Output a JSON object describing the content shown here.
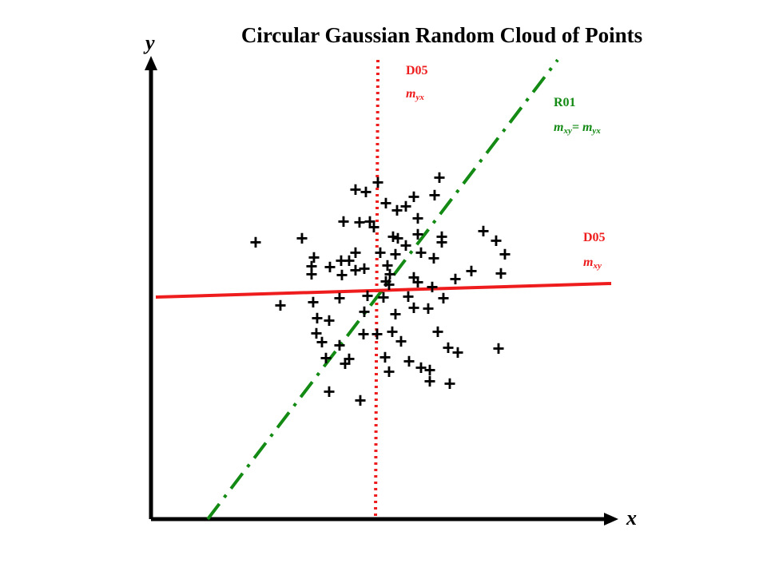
{
  "chart_data": {
    "type": "scatter",
    "title": "Circular Gaussian Random Cloud of Points",
    "xlabel": "x",
    "ylabel": "y",
    "marker": "+",
    "grid": false,
    "colors": {
      "d05": "#ee1c1c",
      "r01": "#138a13",
      "points": "#000000",
      "axes": "#000000"
    },
    "lines": [
      {
        "name": "D05",
        "label_main": "D05",
        "label_sub": "m yx",
        "style": "dotted",
        "color": "#ee1c1c",
        "p1": [
          473,
          75
        ],
        "p2": [
          470,
          650
        ]
      },
      {
        "name": "R01",
        "label_main": "R01",
        "label_sub": "m xy= m yx",
        "style": "dash-dot",
        "color": "#138a13",
        "p1": [
          260,
          650
        ],
        "p2": [
          698,
          75
        ]
      },
      {
        "name": "D05",
        "label_main": "D05",
        "label_sub": "m xy",
        "style": "solid",
        "color": "#ee1c1c",
        "p1": [
          195,
          372
        ],
        "p2": [
          765,
          355
        ]
      }
    ],
    "points": [
      [
        445,
        237
      ],
      [
        458,
        240
      ],
      [
        473,
        228
      ],
      [
        550,
        222
      ],
      [
        518,
        246
      ],
      [
        544,
        244
      ],
      [
        483,
        254
      ],
      [
        497,
        263
      ],
      [
        508,
        258
      ],
      [
        430,
        277
      ],
      [
        450,
        278
      ],
      [
        463,
        277
      ],
      [
        468,
        284
      ],
      [
        523,
        273
      ],
      [
        605,
        289
      ],
      [
        320,
        303
      ],
      [
        378,
        298
      ],
      [
        492,
        296
      ],
      [
        498,
        298
      ],
      [
        523,
        293
      ],
      [
        553,
        296
      ],
      [
        553,
        303
      ],
      [
        621,
        301
      ],
      [
        508,
        307
      ],
      [
        476,
        316
      ],
      [
        495,
        318
      ],
      [
        527,
        316
      ],
      [
        543,
        323
      ],
      [
        632,
        318
      ],
      [
        445,
        316
      ],
      [
        437,
        326
      ],
      [
        393,
        322
      ],
      [
        427,
        326
      ],
      [
        413,
        334
      ],
      [
        390,
        333
      ],
      [
        390,
        343
      ],
      [
        428,
        344
      ],
      [
        445,
        338
      ],
      [
        456,
        336
      ],
      [
        485,
        332
      ],
      [
        518,
        347
      ],
      [
        523,
        353
      ],
      [
        541,
        359
      ],
      [
        590,
        339
      ],
      [
        570,
        349
      ],
      [
        627,
        342
      ],
      [
        483,
        352
      ],
      [
        488,
        343
      ],
      [
        487,
        356
      ],
      [
        351,
        382
      ],
      [
        392,
        378
      ],
      [
        425,
        373
      ],
      [
        460,
        370
      ],
      [
        480,
        372
      ],
      [
        511,
        371
      ],
      [
        518,
        385
      ],
      [
        536,
        386
      ],
      [
        555,
        373
      ],
      [
        456,
        390
      ],
      [
        495,
        393
      ],
      [
        397,
        398
      ],
      [
        412,
        401
      ],
      [
        396,
        417
      ],
      [
        455,
        418
      ],
      [
        472,
        418
      ],
      [
        491,
        415
      ],
      [
        502,
        427
      ],
      [
        548,
        415
      ],
      [
        403,
        428
      ],
      [
        425,
        432
      ],
      [
        561,
        435
      ],
      [
        573,
        441
      ],
      [
        624,
        436
      ],
      [
        408,
        448
      ],
      [
        437,
        449
      ],
      [
        432,
        455
      ],
      [
        482,
        447
      ],
      [
        512,
        452
      ],
      [
        527,
        460
      ],
      [
        487,
        465
      ],
      [
        538,
        463
      ],
      [
        538,
        477
      ],
      [
        563,
        480
      ],
      [
        412,
        490
      ],
      [
        451,
        501
      ]
    ]
  },
  "axes": {
    "x_label": "x",
    "y_label": "y"
  }
}
